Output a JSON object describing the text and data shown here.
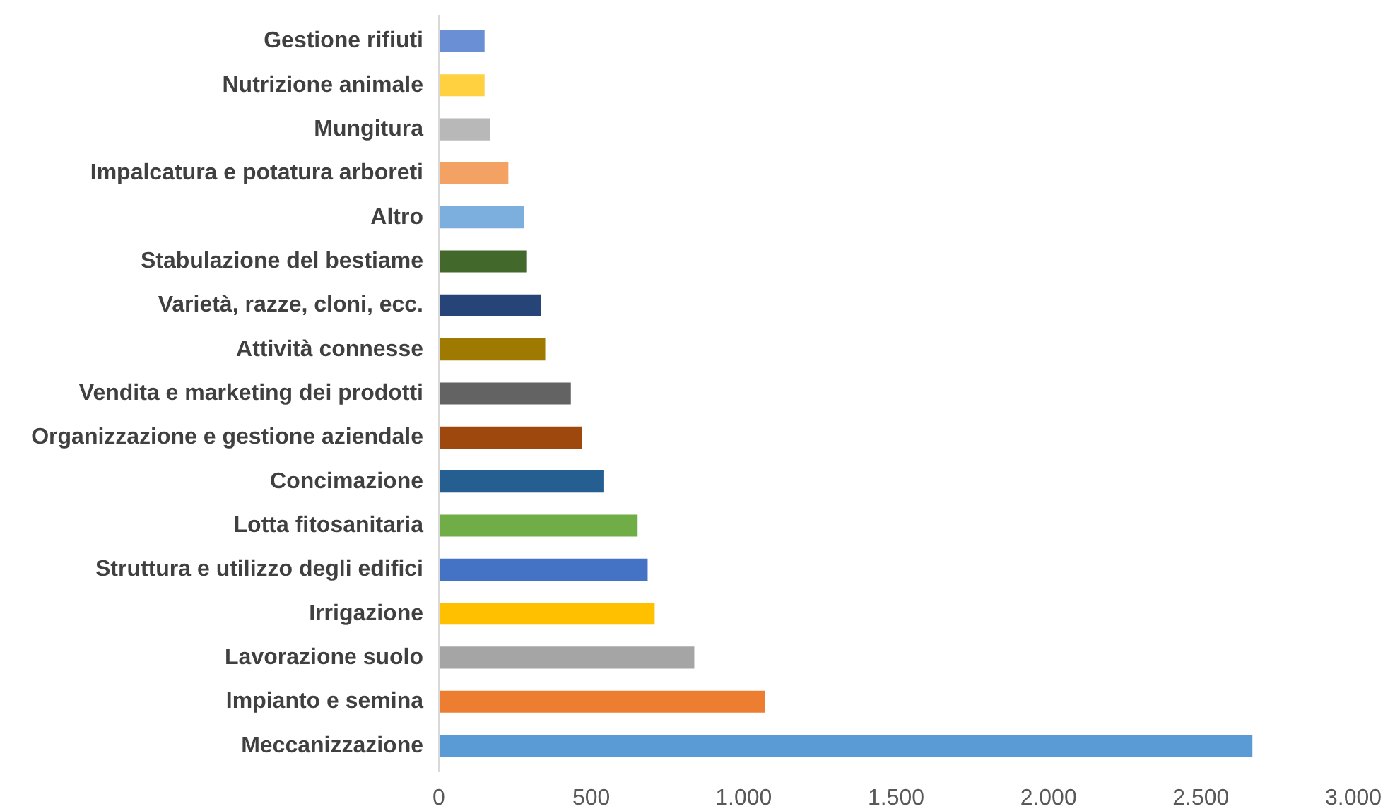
{
  "chart_data": {
    "type": "bar",
    "orientation": "horizontal",
    "categories": [
      "Gestione rifiuti",
      "Nutrizione animale",
      "Mungitura",
      "Impalcatura e potatura arboreti",
      "Altro",
      "Stabulazione del bestiame",
      "Varietà, razze, cloni, ecc.",
      "Attività connesse",
      "Vendita e marketing dei prodotti",
      "Organizzazione e gestione aziendale",
      "Concimazione",
      "Lotta fitosanitaria",
      "Struttura e utilizzo degli edifici",
      "Irrigazione",
      "Lavorazione suolo",
      "Impianto e semina",
      "Meccanizzazione"
    ],
    "values": [
      150,
      150,
      168,
      228,
      280,
      289,
      335,
      349,
      433,
      470,
      540,
      652,
      685,
      708,
      838,
      1071,
      2669
    ],
    "colors": [
      "#6b8fd4",
      "#ffd040",
      "#b8b8b8",
      "#f4a263",
      "#7cafdd",
      "#43682b",
      "#264478",
      "#9e7b00",
      "#636363",
      "#9e480e",
      "#255e91",
      "#70ad47",
      "#4472c4",
      "#ffc000",
      "#a5a5a5",
      "#ed7d31",
      "#5b9bd5"
    ],
    "xlim": [
      0,
      3000
    ],
    "xticks": [
      0,
      {
        "value": 500,
        "label": "500"
      },
      {
        "value": 1000,
        "label": "1.000"
      },
      {
        "value": 1500,
        "label": "1.500"
      },
      {
        "value": 2000,
        "label": "2.000"
      },
      {
        "value": 2500,
        "label": "2.500"
      },
      {
        "value": 3000,
        "label": "3.000"
      }
    ],
    "grid": false
  }
}
